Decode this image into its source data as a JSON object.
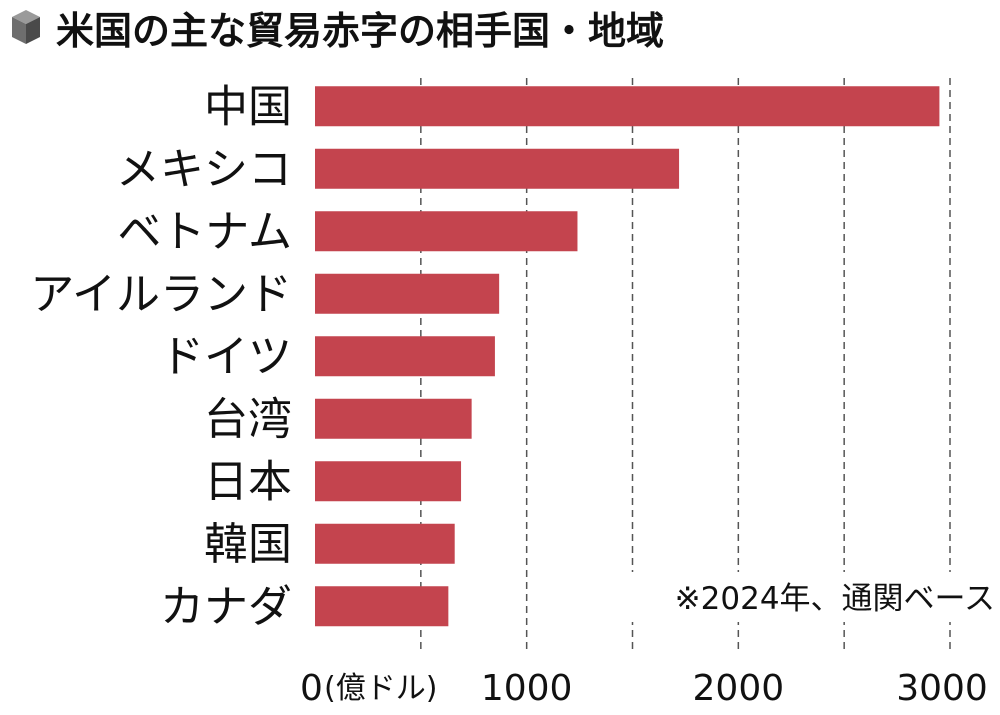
{
  "title": "米国の主な貿易赤字の相手国・地域",
  "title_icon": "cube-icon",
  "note": "※2024年、通関ベース",
  "colors": {
    "bar": "#c4444e",
    "grid": "#555555",
    "text": "#111111",
    "icon_top": "#9a9a9a",
    "icon_left": "#6e6e6e",
    "icon_right": "#4a4a4a"
  },
  "chart_data": {
    "type": "bar",
    "orientation": "horizontal",
    "categories": [
      "中国",
      "メキシコ",
      "ベトナム",
      "アイルランド",
      "ドイツ",
      "台湾",
      "日本",
      "韓国",
      "カナダ"
    ],
    "values": [
      2950,
      1720,
      1240,
      870,
      850,
      740,
      690,
      660,
      630
    ],
    "x_ticks": [
      0,
      1000,
      2000,
      3000
    ],
    "x_tick_labels": [
      "0",
      "1000",
      "2000",
      "3000"
    ],
    "x_unit_label": "(億ドル)",
    "xlim": [
      0,
      3000
    ],
    "grid": "vertical-dashed"
  }
}
